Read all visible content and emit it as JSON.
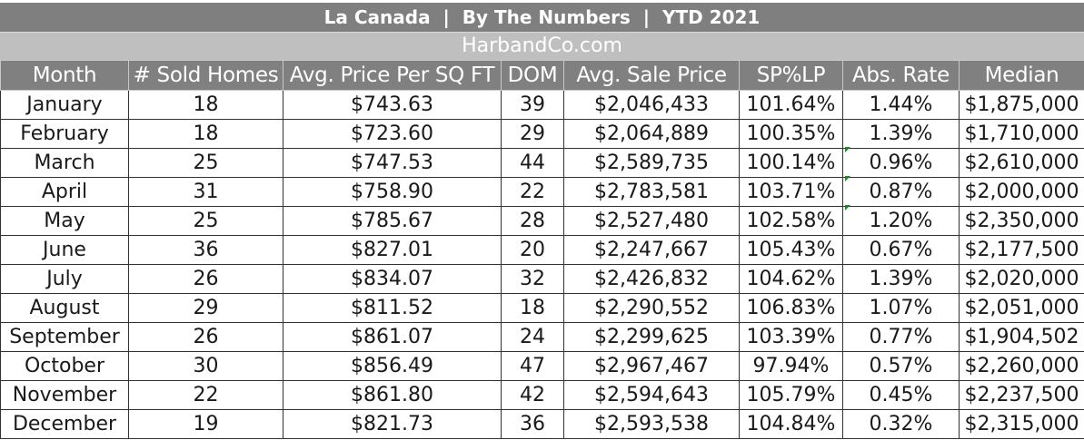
{
  "title": "La Canada  |  By The Numbers  |  YTD 2021",
  "subtitle": "HarbandCo.com",
  "columns": [
    "Month",
    "# Sold Homes",
    "Avg. Price Per SQ FT",
    "DOM",
    "Avg. Sale Price",
    "SP%LP",
    "Abs. Rate",
    "Median"
  ],
  "rows": [
    {
      "month": "January",
      "sold": "18",
      "ppsf": "$743.63",
      "dom": "39",
      "avg_price": "$2,046,433",
      "sp_lp": "101.64%",
      "abs_rate": "1.44%",
      "median": "$1,875,000"
    },
    {
      "month": "February",
      "sold": "18",
      "ppsf": "$723.60",
      "dom": "29",
      "avg_price": "$2,064,889",
      "sp_lp": "100.35%",
      "abs_rate": "1.39%",
      "median": "$1,710,000"
    },
    {
      "month": "March",
      "sold": "25",
      "ppsf": "$747.53",
      "dom": "44",
      "avg_price": "$2,589,735",
      "sp_lp": "100.14%",
      "abs_rate": "0.96%",
      "median": "$2,610,000"
    },
    {
      "month": "April",
      "sold": "31",
      "ppsf": "$758.90",
      "dom": "22",
      "avg_price": "$2,783,581",
      "sp_lp": "103.71%",
      "abs_rate": "0.87%",
      "median": "$2,000,000"
    },
    {
      "month": "May",
      "sold": "25",
      "ppsf": "$785.67",
      "dom": "28",
      "avg_price": "$2,527,480",
      "sp_lp": "102.58%",
      "abs_rate": "1.20%",
      "median": "$2,350,000"
    },
    {
      "month": "June",
      "sold": "36",
      "ppsf": "$827.01",
      "dom": "20",
      "avg_price": "$2,247,667",
      "sp_lp": "105.43%",
      "abs_rate": "0.67%",
      "median": "$2,177,500"
    },
    {
      "month": "July",
      "sold": "26",
      "ppsf": "$834.07",
      "dom": "32",
      "avg_price": "$2,426,832",
      "sp_lp": "104.62%",
      "abs_rate": "1.39%",
      "median": "$2,020,000"
    },
    {
      "month": "August",
      "sold": "29",
      "ppsf": "$811.52",
      "dom": "18",
      "avg_price": "$2,290,552",
      "sp_lp": "106.83%",
      "abs_rate": "1.07%",
      "median": "$2,051,000"
    },
    {
      "month": "September",
      "sold": "26",
      "ppsf": "$861.07",
      "dom": "24",
      "avg_price": "$2,299,625",
      "sp_lp": "103.39%",
      "abs_rate": "0.77%",
      "median": "$1,904,502"
    },
    {
      "month": "October",
      "sold": "30",
      "ppsf": "$856.49",
      "dom": "47",
      "avg_price": "$2,967,467",
      "sp_lp": "97.94%",
      "abs_rate": "0.57%",
      "median": "$2,260,000"
    },
    {
      "month": "November",
      "sold": "22",
      "ppsf": "$861.80",
      "dom": "42",
      "avg_price": "$2,594,643",
      "sp_lp": "105.79%",
      "abs_rate": "0.45%",
      "median": "$2,237,500"
    },
    {
      "month": "December",
      "sold": "19",
      "ppsf": "$821.73",
      "dom": "36",
      "avg_price": "$2,593,538",
      "sp_lp": "104.84%",
      "abs_rate": "0.32%",
      "median": "$2,315,000"
    }
  ],
  "colors": {
    "title_bg": "#7f7f7f",
    "subtitle_bg": "#bfbfbf",
    "header_bg": "#808080",
    "header_text": "#ffffff",
    "cell_text": "#1a1a1a",
    "comment_marker": "#2e7d32"
  }
}
